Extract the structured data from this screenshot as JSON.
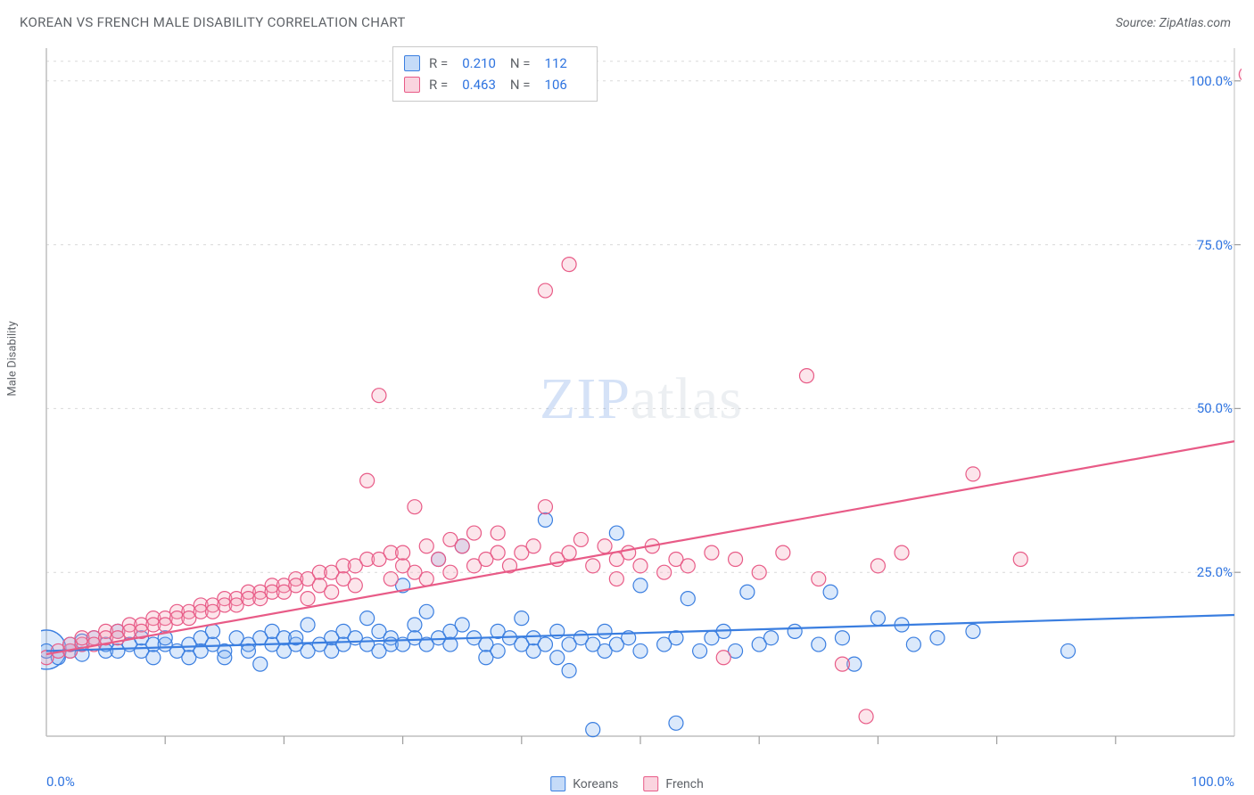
{
  "header": {
    "title": "KOREAN VS FRENCH MALE DISABILITY CORRELATION CHART",
    "source": "Source: ZipAtlas.com"
  },
  "axes": {
    "ylabel": "Male Disability",
    "x_min_label": "0.0%",
    "x_max_label": "100.0%",
    "xlim": [
      0,
      100
    ],
    "ylim": [
      0,
      105
    ],
    "yticks": [
      {
        "v": 25,
        "label": "25.0%"
      },
      {
        "v": 50,
        "label": "50.0%"
      },
      {
        "v": 75,
        "label": "75.0%"
      },
      {
        "v": 100,
        "label": "100.0%"
      }
    ],
    "xticks_minor": [
      10,
      20,
      30,
      40,
      50,
      60,
      70,
      80,
      90
    ]
  },
  "style": {
    "bg": "#ffffff",
    "grid_color": "#d9d9d9",
    "grid_dash": "3,5",
    "axis_color": "#bfbfbf",
    "tick_color": "#9e9e9e",
    "text_color": "#5f6368",
    "value_color": "#2f74e0",
    "marker_radius": 8,
    "marker_stroke_width": 1.2,
    "marker_fill_opacity": 0.28,
    "trend_width": 2.2,
    "origin_marker_radius": 22
  },
  "series": {
    "koreans": {
      "label": "Koreans",
      "color": "#3a7ee0",
      "fill": "#7fb0ef",
      "R": "0.210",
      "N": "112",
      "trend": {
        "y_at_x0": 13.0,
        "y_at_x100": 18.5
      },
      "points": [
        [
          0,
          13
        ],
        [
          1,
          12
        ],
        [
          2,
          13
        ],
        [
          2,
          14
        ],
        [
          3,
          14.5
        ],
        [
          3,
          12.5
        ],
        [
          4,
          15
        ],
        [
          5,
          14
        ],
        [
          5,
          13
        ],
        [
          6,
          16
        ],
        [
          6,
          13
        ],
        [
          7,
          14
        ],
        [
          8,
          13
        ],
        [
          8,
          15
        ],
        [
          9,
          12
        ],
        [
          9,
          14
        ],
        [
          10,
          14
        ],
        [
          10,
          15
        ],
        [
          11,
          13
        ],
        [
          12,
          14
        ],
        [
          12,
          12
        ],
        [
          13,
          15
        ],
        [
          13,
          13
        ],
        [
          14,
          14
        ],
        [
          14,
          16
        ],
        [
          15,
          13
        ],
        [
          15,
          12
        ],
        [
          16,
          15
        ],
        [
          17,
          14
        ],
        [
          17,
          13
        ],
        [
          18,
          15
        ],
        [
          18,
          11
        ],
        [
          19,
          14
        ],
        [
          19,
          16
        ],
        [
          20,
          15
        ],
        [
          20,
          13
        ],
        [
          21,
          14
        ],
        [
          21,
          15
        ],
        [
          22,
          13
        ],
        [
          22,
          17
        ],
        [
          23,
          14
        ],
        [
          24,
          15
        ],
        [
          24,
          13
        ],
        [
          25,
          16
        ],
        [
          25,
          14
        ],
        [
          26,
          15
        ],
        [
          27,
          14
        ],
        [
          27,
          18
        ],
        [
          28,
          13
        ],
        [
          28,
          16
        ],
        [
          29,
          15
        ],
        [
          29,
          14
        ],
        [
          30,
          23
        ],
        [
          30,
          14
        ],
        [
          31,
          17
        ],
        [
          31,
          15
        ],
        [
          32,
          14
        ],
        [
          32,
          19
        ],
        [
          33,
          27
        ],
        [
          33,
          15
        ],
        [
          34,
          16
        ],
        [
          34,
          14
        ],
        [
          35,
          17
        ],
        [
          35,
          29
        ],
        [
          36,
          15
        ],
        [
          37,
          14
        ],
        [
          37,
          12
        ],
        [
          38,
          16
        ],
        [
          38,
          13
        ],
        [
          39,
          15
        ],
        [
          40,
          14
        ],
        [
          40,
          18
        ],
        [
          41,
          13
        ],
        [
          41,
          15
        ],
        [
          42,
          33
        ],
        [
          42,
          14
        ],
        [
          43,
          16
        ],
        [
          43,
          12
        ],
        [
          44,
          14
        ],
        [
          44,
          10
        ],
        [
          45,
          15
        ],
        [
          46,
          14
        ],
        [
          46,
          1
        ],
        [
          47,
          16
        ],
        [
          47,
          13
        ],
        [
          48,
          31
        ],
        [
          48,
          14
        ],
        [
          49,
          15
        ],
        [
          50,
          13
        ],
        [
          50,
          23
        ],
        [
          52,
          14
        ],
        [
          53,
          15
        ],
        [
          53,
          2
        ],
        [
          54,
          21
        ],
        [
          55,
          13
        ],
        [
          56,
          15
        ],
        [
          57,
          16
        ],
        [
          58,
          13
        ],
        [
          59,
          22
        ],
        [
          60,
          14
        ],
        [
          61,
          15
        ],
        [
          63,
          16
        ],
        [
          65,
          14
        ],
        [
          66,
          22
        ],
        [
          67,
          15
        ],
        [
          68,
          11
        ],
        [
          70,
          18
        ],
        [
          72,
          17
        ],
        [
          73,
          14
        ],
        [
          75,
          15
        ],
        [
          78,
          16
        ],
        [
          86,
          13
        ]
      ]
    },
    "french": {
      "label": "French",
      "color": "#e85b87",
      "fill": "#f4a0b8",
      "R": "0.463",
      "N": "106",
      "trend": {
        "y_at_x0": 12.5,
        "y_at_x100": 45.0
      },
      "points": [
        [
          0,
          12
        ],
        [
          1,
          13
        ],
        [
          2,
          13
        ],
        [
          2,
          14
        ],
        [
          3,
          14
        ],
        [
          3,
          15
        ],
        [
          4,
          15
        ],
        [
          4,
          14
        ],
        [
          5,
          16
        ],
        [
          5,
          15
        ],
        [
          6,
          16
        ],
        [
          6,
          15
        ],
        [
          7,
          17
        ],
        [
          7,
          16
        ],
        [
          8,
          17
        ],
        [
          8,
          16
        ],
        [
          9,
          18
        ],
        [
          9,
          17
        ],
        [
          10,
          18
        ],
        [
          10,
          17
        ],
        [
          11,
          19
        ],
        [
          11,
          18
        ],
        [
          12,
          19
        ],
        [
          12,
          18
        ],
        [
          13,
          20
        ],
        [
          13,
          19
        ],
        [
          14,
          20
        ],
        [
          14,
          19
        ],
        [
          15,
          21
        ],
        [
          15,
          20
        ],
        [
          16,
          21
        ],
        [
          16,
          20
        ],
        [
          17,
          22
        ],
        [
          17,
          21
        ],
        [
          18,
          22
        ],
        [
          18,
          21
        ],
        [
          19,
          23
        ],
        [
          19,
          22
        ],
        [
          20,
          23
        ],
        [
          20,
          22
        ],
        [
          21,
          24
        ],
        [
          21,
          23
        ],
        [
          22,
          24
        ],
        [
          22,
          21
        ],
        [
          23,
          25
        ],
        [
          23,
          23
        ],
        [
          24,
          25
        ],
        [
          24,
          22
        ],
        [
          25,
          26
        ],
        [
          25,
          24
        ],
        [
          26,
          26
        ],
        [
          26,
          23
        ],
        [
          27,
          27
        ],
        [
          27,
          39
        ],
        [
          28,
          27
        ],
        [
          28,
          52
        ],
        [
          29,
          28
        ],
        [
          29,
          24
        ],
        [
          30,
          26
        ],
        [
          30,
          28
        ],
        [
          31,
          35
        ],
        [
          31,
          25
        ],
        [
          32,
          29
        ],
        [
          32,
          24
        ],
        [
          33,
          27
        ],
        [
          34,
          30
        ],
        [
          34,
          25
        ],
        [
          35,
          29
        ],
        [
          36,
          31
        ],
        [
          36,
          26
        ],
        [
          37,
          27
        ],
        [
          38,
          28
        ],
        [
          38,
          31
        ],
        [
          39,
          26
        ],
        [
          40,
          28
        ],
        [
          41,
          29
        ],
        [
          42,
          35
        ],
        [
          42,
          68
        ],
        [
          43,
          27
        ],
        [
          44,
          72
        ],
        [
          44,
          28
        ],
        [
          45,
          30
        ],
        [
          46,
          26
        ],
        [
          47,
          29
        ],
        [
          48,
          27
        ],
        [
          48,
          24
        ],
        [
          49,
          28
        ],
        [
          50,
          26
        ],
        [
          51,
          29
        ],
        [
          52,
          25
        ],
        [
          53,
          27
        ],
        [
          54,
          26
        ],
        [
          56,
          28
        ],
        [
          57,
          12
        ],
        [
          58,
          27
        ],
        [
          60,
          25
        ],
        [
          62,
          28
        ],
        [
          64,
          55
        ],
        [
          65,
          24
        ],
        [
          67,
          11
        ],
        [
          69,
          3
        ],
        [
          70,
          26
        ],
        [
          72,
          28
        ],
        [
          78,
          40
        ],
        [
          82,
          27
        ],
        [
          101,
          101
        ]
      ]
    }
  },
  "legend_bottom": [
    {
      "key": "koreans"
    },
    {
      "key": "french"
    }
  ],
  "watermark": {
    "part1": "ZIP",
    "part2": "atlas"
  }
}
